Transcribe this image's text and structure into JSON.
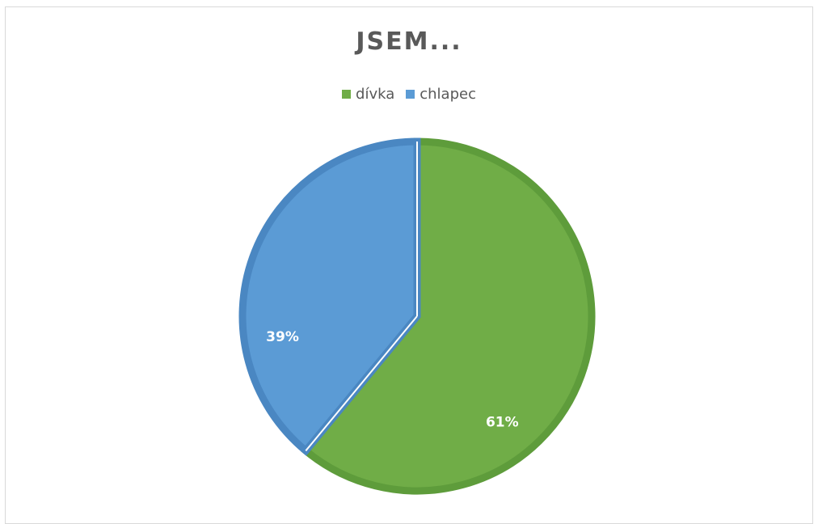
{
  "chart_data": {
    "type": "pie",
    "title": "JSEM...",
    "legend_position": "top",
    "categories": [
      "dívka",
      "chlapec"
    ],
    "values": [
      61,
      39
    ],
    "data_labels": [
      "61%",
      "39%"
    ],
    "colors": [
      "#70ad47",
      "#5b9bd5"
    ],
    "border_colors": [
      "#5e9c3b",
      "#4a87c2"
    ]
  }
}
